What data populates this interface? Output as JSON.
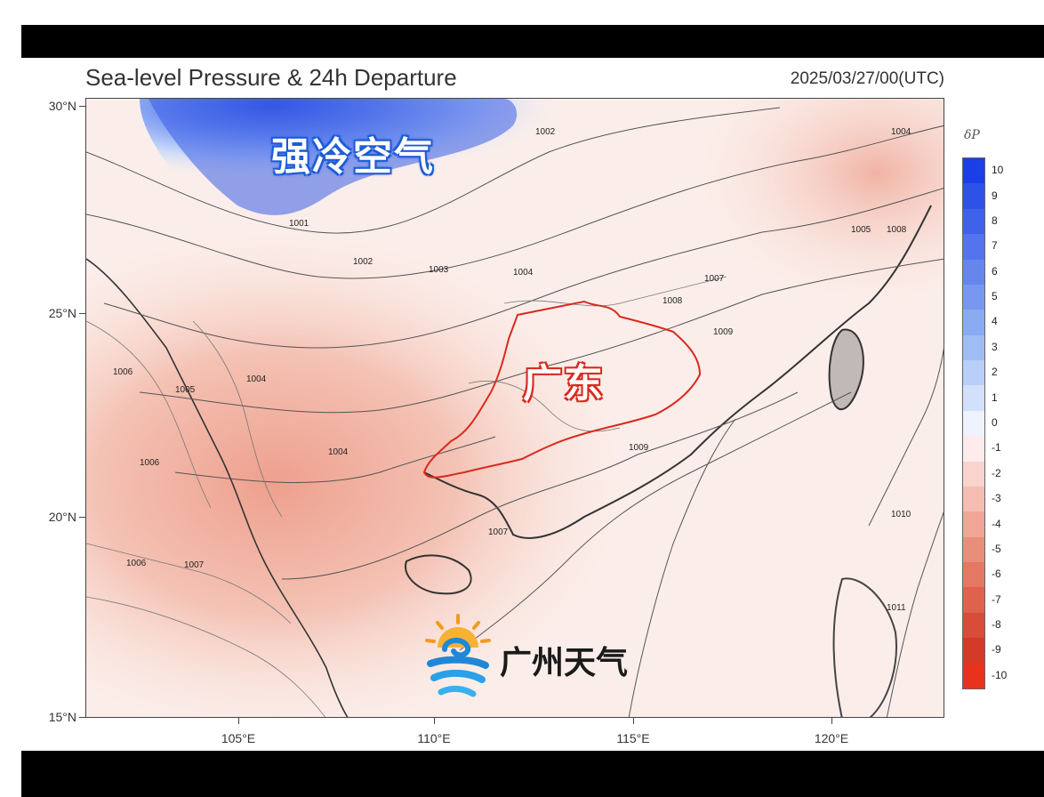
{
  "header": {
    "title": "Sea-level Pressure & 24h Departure",
    "timestamp": "2025/03/27/00(UTC)"
  },
  "axes": {
    "lat_labels": [
      "30°N",
      "25°N",
      "20°N",
      "15°N"
    ],
    "lon_labels": [
      "105°E",
      "110°E",
      "115°E",
      "120°E"
    ],
    "lat_range": [
      15,
      30
    ],
    "lon_range": [
      101.3,
      123.0
    ]
  },
  "colorbar": {
    "title": "δP",
    "labels": [
      "10",
      "9",
      "8",
      "7",
      "6",
      "5",
      "4",
      "3",
      "2",
      "1",
      "0",
      "-1",
      "-2",
      "-3",
      "-4",
      "-5",
      "-6",
      "-7",
      "-8",
      "-9",
      "-10"
    ],
    "colors": [
      "#1a3fe6",
      "#2e52e8",
      "#3f62ea",
      "#5374ec",
      "#6686ee",
      "#7898f0",
      "#8aaaf2",
      "#a0bcf5",
      "#b8cff8",
      "#d2e0fb",
      "#eef3fd",
      "#fdeceb",
      "#f9d3cd",
      "#f5bcb2",
      "#f0a596",
      "#ea8e7c",
      "#e47863",
      "#de624c",
      "#d84d38",
      "#d33a27",
      "#e8331c"
    ]
  },
  "isobars": {
    "labels": [
      "1002",
      "1001",
      "1003",
      "1004",
      "1005",
      "1006",
      "1007",
      "1008",
      "1009",
      "1010",
      "1011"
    ]
  },
  "annotations": {
    "cold_air": "强冷空气",
    "guangdong": "广东"
  },
  "watermark": {
    "text": "广州天气"
  },
  "colors": {
    "cold_annotation": "#1e5dd6",
    "region_outline": "#d92a1f",
    "warm_departure": "#f0b0a0",
    "cold_departure": "#3355e0"
  }
}
